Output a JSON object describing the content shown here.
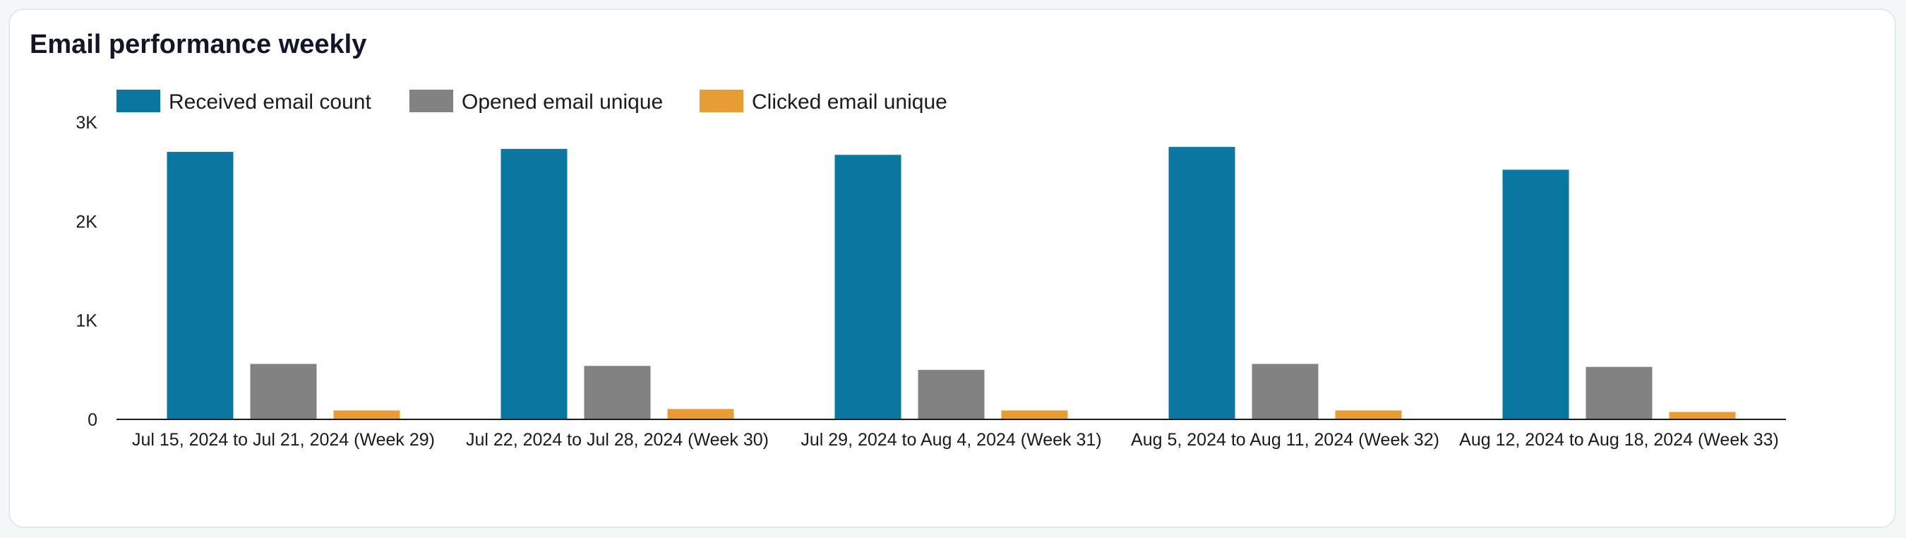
{
  "card": {
    "title": "Email performance weekly"
  },
  "chart_data": {
    "type": "bar",
    "title": "Email performance weekly",
    "categories": [
      "Jul 15, 2024 to Jul 21, 2024 (Week 29)",
      "Jul 22, 2024 to Jul 28, 2024 (Week 30)",
      "Jul 29, 2024 to Aug 4, 2024 (Week 31)",
      "Aug 5, 2024 to Aug 11, 2024 (Week 32)",
      "Aug 12, 2024 to Aug 18, 2024 (Week 33)"
    ],
    "series": [
      {
        "name": "Received email count",
        "color": "#0a77a1",
        "values": [
          2700,
          2730,
          2670,
          2750,
          2520
        ]
      },
      {
        "name": "Opened email unique",
        "color": "#828282",
        "values": [
          560,
          540,
          500,
          560,
          530
        ]
      },
      {
        "name": "Clicked email unique",
        "color": "#e79d33",
        "values": [
          90,
          105,
          90,
          90,
          75
        ]
      }
    ],
    "ylim": [
      0,
      3000
    ],
    "yticks": [
      0,
      1000,
      2000,
      3000
    ],
    "ytick_labels": [
      "0",
      "1K",
      "2K",
      "3K"
    ],
    "xlabel": "",
    "ylabel": "",
    "grid": false,
    "legend": "top-left"
  }
}
